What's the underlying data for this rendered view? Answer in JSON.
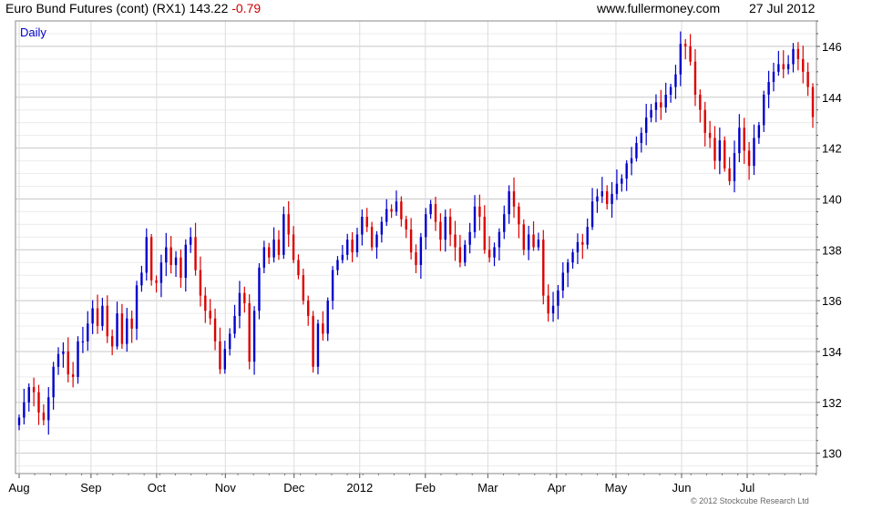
{
  "header": {
    "title": "Euro Bund Futures (cont) (RX1)",
    "price": "143.22",
    "change": "-0.79",
    "site": "www.fullermoney.com",
    "date": "27 Jul 2012"
  },
  "footer": {
    "copyright": "© 2012 Stockcube Research Ltd"
  },
  "colors": {
    "up": "#0000cc",
    "down": "#dd0000",
    "grid": "#d8d8d8",
    "border": "#888888",
    "frame_text": "#000000"
  },
  "chart_data": {
    "type": "line",
    "subtype": "daily price bars (up = blue, down = red)",
    "period_label": "Daily",
    "x_ticks": [
      "Aug",
      "Sep",
      "Oct",
      "Nov",
      "Dec",
      "2012",
      "Feb",
      "Mar",
      "Apr",
      "May",
      "Jun",
      "Jul"
    ],
    "y_ticks": [
      130,
      132,
      134,
      136,
      138,
      140,
      142,
      144,
      146
    ],
    "ylim": [
      129.2,
      147.0
    ],
    "grid": true,
    "y_axis_side": "right",
    "series": [
      {
        "values": [
          131.4,
          132.0,
          132.6,
          132.4,
          131.6,
          131.3,
          132.2,
          133.4,
          133.9,
          134.0,
          133.1,
          133.0,
          134.4,
          134.4,
          135.1,
          135.7,
          135.0,
          135.8,
          134.6,
          134.2,
          135.5,
          134.3,
          135.3,
          134.9,
          136.6,
          137.1,
          138.5,
          136.8,
          136.7,
          137.5,
          138.1,
          137.4,
          137.7,
          136.9,
          138.2,
          138.5,
          137.2,
          136.2,
          135.6,
          135.3,
          134.4,
          133.3,
          134.1,
          134.7,
          135.4,
          136.3,
          135.9,
          133.6,
          135.6,
          137.3,
          138.1,
          137.7,
          138.4,
          137.8,
          139.4,
          138.6,
          137.6,
          137.0,
          136.0,
          135.4,
          133.4,
          135.1,
          134.7,
          136.0,
          137.2,
          137.6,
          137.8,
          138.4,
          137.9,
          138.6,
          139.3,
          138.9,
          138.1,
          138.6,
          139.1,
          139.6,
          139.5,
          139.9,
          139.2,
          138.8,
          137.9,
          137.4,
          138.5,
          139.4,
          139.8,
          139.1,
          138.4,
          139.3,
          138.6,
          138.1,
          137.5,
          138.2,
          138.7,
          139.7,
          139.3,
          138.0,
          137.7,
          138.1,
          138.7,
          139.4,
          140.3,
          139.7,
          139.0,
          138.0,
          138.6,
          138.1,
          138.4,
          136.2,
          135.5,
          135.8,
          136.4,
          137.1,
          137.5,
          137.9,
          138.3,
          138.2,
          138.9,
          139.9,
          140.1,
          140.3,
          139.8,
          140.2,
          140.6,
          140.8,
          141.4,
          141.6,
          142.2,
          142.6,
          143.2,
          143.5,
          143.8,
          143.6,
          144.1,
          144.4,
          144.9,
          146.1,
          146.0,
          145.4,
          144.1,
          143.5,
          142.6,
          142.4,
          141.5,
          142.3,
          141.2,
          140.7,
          141.8,
          142.8,
          141.9,
          141.3,
          142.4,
          142.9,
          144.1,
          144.6,
          145.0,
          145.3,
          145.1,
          145.3,
          145.9,
          145.5,
          145.0,
          144.4,
          143.22
        ]
      }
    ]
  }
}
